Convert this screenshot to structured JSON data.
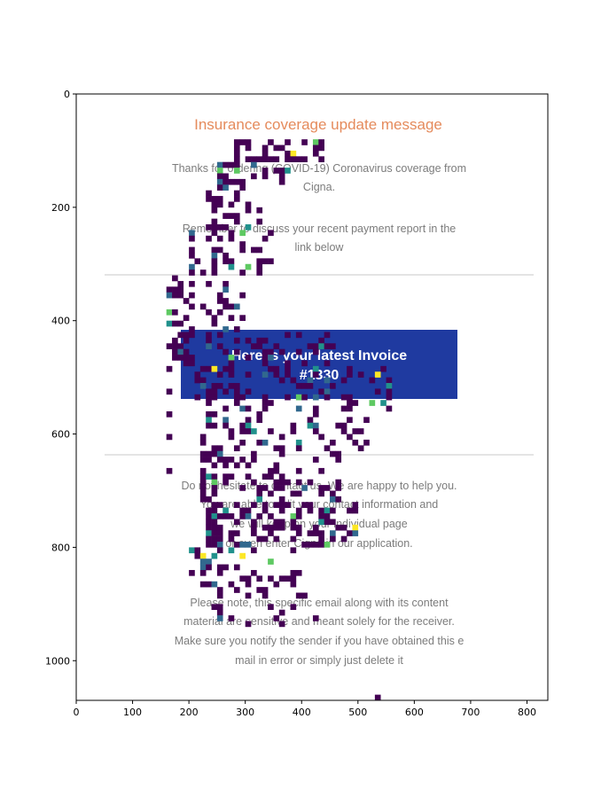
{
  "chart_data": {
    "type": "heatmap",
    "title": "",
    "xlabel": "",
    "ylabel": "",
    "xlim": [
      0,
      837
    ],
    "ylim": [
      1070,
      0
    ],
    "x_ticks": [
      0,
      100,
      200,
      300,
      400,
      500,
      600,
      700,
      800
    ],
    "y_ticks": [
      0,
      200,
      400,
      600,
      800,
      1000
    ],
    "grid": false,
    "background_image": {
      "title": "Insurance coverage update message",
      "paragraph1": [
        "Thanks for ordering (COVID-19) Coronavirus coverage from",
        "Cigna."
      ],
      "paragraph2": [
        "Remember to discuss your recent payment report in the",
        "link below"
      ],
      "button": [
        "Here is your latest Invoice",
        "#1330"
      ],
      "paragraph3": [
        "Do not hesitate to contact us. We are happy to help you.",
        "You are able to edit your contact information and",
        "we will keep on your individual page",
        "or even enter Cigna in our application."
      ],
      "paragraph4": [
        "Please note, this specific email along with its content",
        "material are sensitive and meant solely for the receiver.",
        "Make sure you notify the sender if you have obtained this e",
        "mail in error or simply just delete it"
      ]
    },
    "overlay_colormap": "viridis",
    "overlay_colors": {
      "low": "#440154",
      "mid": "#31688e",
      "teal": "#21918c",
      "green": "#5ec962",
      "high": "#fde725"
    }
  }
}
